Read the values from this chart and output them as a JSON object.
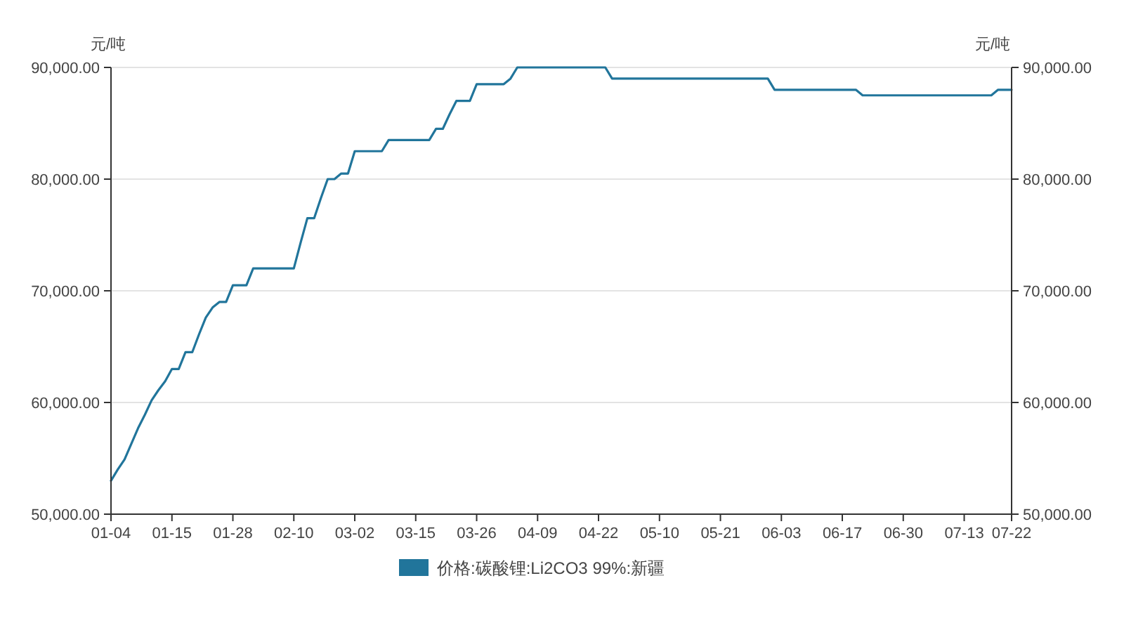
{
  "chart_data": {
    "type": "line",
    "ylabel": "元/吨",
    "y2label": "元/吨",
    "categories": [
      "01-04",
      null,
      null,
      null,
      null,
      null,
      null,
      null,
      null,
      "01-15",
      null,
      null,
      null,
      null,
      null,
      null,
      null,
      null,
      "01-28",
      null,
      null,
      null,
      null,
      null,
      null,
      null,
      null,
      "02-10",
      null,
      null,
      null,
      null,
      null,
      null,
      null,
      null,
      "03-02",
      null,
      null,
      null,
      null,
      null,
      null,
      null,
      null,
      "03-15",
      null,
      null,
      null,
      null,
      null,
      null,
      null,
      null,
      "03-26",
      null,
      null,
      null,
      null,
      null,
      null,
      null,
      null,
      "04-09",
      null,
      null,
      null,
      null,
      null,
      null,
      null,
      null,
      "04-22",
      null,
      null,
      null,
      null,
      null,
      null,
      null,
      null,
      "05-10",
      null,
      null,
      null,
      null,
      null,
      null,
      null,
      null,
      "05-21",
      null,
      null,
      null,
      null,
      null,
      null,
      null,
      null,
      "06-03",
      null,
      null,
      null,
      null,
      null,
      null,
      null,
      null,
      "06-17",
      null,
      null,
      null,
      null,
      null,
      null,
      null,
      null,
      "06-30",
      null,
      null,
      null,
      null,
      null,
      null,
      null,
      null,
      "07-13",
      null,
      null,
      null,
      null,
      null,
      null,
      "07-22"
    ],
    "series": [
      {
        "name": "价格:碳酸锂:Li2CO3 99%:新疆",
        "color": "#21759b",
        "values": [
          53000,
          54000,
          54900,
          56300,
          57700,
          58900,
          60200,
          61100,
          61900,
          63000,
          63000,
          64500,
          64500,
          66100,
          67600,
          68500,
          69000,
          69000,
          70500,
          70500,
          70500,
          72000,
          72000,
          72000,
          72000,
          72000,
          72000,
          72000,
          74300,
          76500,
          76500,
          78300,
          80000,
          80000,
          80500,
          80500,
          82500,
          82500,
          82500,
          82500,
          82500,
          83500,
          83500,
          83500,
          83500,
          83500,
          83500,
          83500,
          84500,
          84500,
          85800,
          87000,
          87000,
          87000,
          88500,
          88500,
          88500,
          88500,
          88500,
          89000,
          90000,
          90000,
          90000,
          90000,
          90000,
          90000,
          90000,
          90000,
          90000,
          90000,
          90000,
          90000,
          90000,
          90000,
          89000,
          89000,
          89000,
          89000,
          89000,
          89000,
          89000,
          89000,
          89000,
          89000,
          89000,
          89000,
          89000,
          89000,
          89000,
          89000,
          89000,
          89000,
          89000,
          89000,
          89000,
          89000,
          89000,
          89000,
          88000,
          88000,
          88000,
          88000,
          88000,
          88000,
          88000,
          88000,
          88000,
          88000,
          88000,
          88000,
          88000,
          87500,
          87500,
          87500,
          87500,
          87500,
          87500,
          87500,
          87500,
          87500,
          87500,
          87500,
          87500,
          87500,
          87500,
          87500,
          87500,
          87500,
          87500,
          87500,
          87500,
          88000,
          88000,
          88000
        ]
      }
    ],
    "ylim": [
      50000,
      90000
    ],
    "yticks": [
      {
        "value": 50000,
        "label": "50,000.00"
      },
      {
        "value": 60000,
        "label": "60,000.00"
      },
      {
        "value": 70000,
        "label": "70,000.00"
      },
      {
        "value": 80000,
        "label": "80,000.00"
      },
      {
        "value": 90000,
        "label": "90,000.00"
      }
    ],
    "y2lim": [
      50000,
      90000
    ],
    "y2ticks": [
      {
        "value": 50000,
        "label": "50,000.00"
      },
      {
        "value": 60000,
        "label": "60,000.00"
      },
      {
        "value": 70000,
        "label": "70,000.00"
      },
      {
        "value": 80000,
        "label": "80,000.00"
      },
      {
        "value": 90000,
        "label": "90,000.00"
      }
    ],
    "grid": "y",
    "legend": "bottom"
  }
}
